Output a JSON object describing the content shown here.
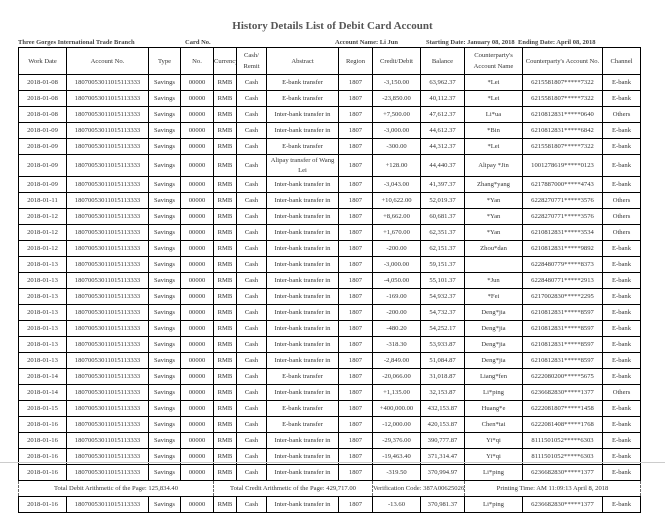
{
  "title": "History Details List of Debit Card Account",
  "info": {
    "branch": "Three Gorges International Trade Branch",
    "card": "Card No.",
    "name": "Account Name: Li Jun",
    "start": "Starting Date: January 08, 2018",
    "end": "Ending Date: April 08, 2018"
  },
  "headers": [
    "Work Date",
    "Account No.",
    "Type",
    "No.",
    "Currency",
    "Cash/ Remit",
    "Abstract",
    "Region",
    "Credit/Debit",
    "Balance",
    "Counterparty's Account Name",
    "Counterparty's Account No.",
    "Channel"
  ],
  "rows": [
    [
      "2018-01-08",
      "18070053011015113333",
      "Savings",
      "00000",
      "RMB",
      "Cash",
      "E-bank transfer",
      "1807",
      "-3,150.00",
      "63,962.37",
      "*Lei",
      "6215581807*****7322",
      "E-bank"
    ],
    [
      "2018-01-08",
      "18070053011015113333",
      "Savings",
      "00000",
      "RMB",
      "Cash",
      "E-bank transfer",
      "1807",
      "-23,850.00",
      "40,112.37",
      "*Lei",
      "6215581807*****7322",
      "E-bank"
    ],
    [
      "2018-01-08",
      "18070053011015113333",
      "Savings",
      "00000",
      "RMB",
      "Cash",
      "Inter-bank transfer in",
      "1807",
      "+7,500.00",
      "47,612.37",
      "Li*ua",
      "6210812831*****0640",
      "Others"
    ],
    [
      "2018-01-09",
      "18070053011015113333",
      "Savings",
      "00000",
      "RMB",
      "Cash",
      "Inter-bank transfer in",
      "1807",
      "-3,000.00",
      "44,612.37",
      "*Bin",
      "6210812831*****6842",
      "E-bank"
    ],
    [
      "2018-01-09",
      "18070053011015113333",
      "Savings",
      "00000",
      "RMB",
      "Cash",
      "E-bank transfer",
      "1807",
      "-300.00",
      "44,312.37",
      "*Lei",
      "6215581807*****7322",
      "E-bank"
    ],
    [
      "2018-01-09",
      "18070053011015113333",
      "Savings",
      "00000",
      "RMB",
      "Cash",
      "Alipay transfer of Wang Lei",
      "1807",
      "+128.00",
      "44,440.37",
      "Alipay *Jin",
      "1001278619*****0123",
      "E-bank"
    ],
    [
      "2018-01-09",
      "18070053011015113333",
      "Savings",
      "00000",
      "RMB",
      "Cash",
      "Inter-bank transfer in",
      "1807",
      "-3,043.00",
      "41,397.37",
      "Zhang*yang",
      "6217887000*****4743",
      "E-bank"
    ],
    [
      "2018-01-11",
      "18070053011015113333",
      "Savings",
      "00000",
      "RMB",
      "Cash",
      "Inter-bank transfer in",
      "1807",
      "+10,622.00",
      "52,019.37",
      "*Yan",
      "6228270771*****3576",
      "Others"
    ],
    [
      "2018-01-12",
      "18070053011015113333",
      "Savings",
      "00000",
      "RMB",
      "Cash",
      "Inter-bank transfer in",
      "1807",
      "+8,662.00",
      "60,681.37",
      "*Yan",
      "6228270771*****3576",
      "Others"
    ],
    [
      "2018-01-12",
      "18070053011015113333",
      "Savings",
      "00000",
      "RMB",
      "Cash",
      "Inter-bank transfer in",
      "1807",
      "+1,670.00",
      "62,351.37",
      "*Yan",
      "6210812831*****3534",
      "Others"
    ],
    [
      "2018-01-12",
      "18070053011015113333",
      "Savings",
      "00000",
      "RMB",
      "Cash",
      "Inter-bank transfer in",
      "1807",
      "-200.00",
      "62,151.37",
      "Zhou*dan",
      "6210812831*****9892",
      "E-bank"
    ],
    [
      "2018-01-13",
      "18070053011015113333",
      "Savings",
      "00000",
      "RMB",
      "Cash",
      "Inter-bank transfer in",
      "1807",
      "-3,000.00",
      "59,151.37",
      "",
      "6228480779*****8373",
      "E-bank"
    ],
    [
      "2018-01-13",
      "18070053011015113333",
      "Savings",
      "00000",
      "RMB",
      "Cash",
      "Inter-bank transfer in",
      "1807",
      "-4,050.00",
      "55,101.37",
      "*Jun",
      "6228480771*****2913",
      "E-bank"
    ],
    [
      "2018-01-13",
      "18070053011015113333",
      "Savings",
      "00000",
      "RMB",
      "Cash",
      "Inter-bank transfer in",
      "1807",
      "-169.00",
      "54,932.37",
      "*Fei",
      "6217002830*****2295",
      "E-bank"
    ],
    [
      "2018-01-13",
      "18070053011015113333",
      "Savings",
      "00000",
      "RMB",
      "Cash",
      "Inter-bank transfer in",
      "1807",
      "-200.00",
      "54,732.37",
      "Deng*jia",
      "6210812831*****8597",
      "E-bank"
    ],
    [
      "2018-01-13",
      "18070053011015113333",
      "Savings",
      "00000",
      "RMB",
      "Cash",
      "Inter-bank transfer in",
      "1807",
      "-480.20",
      "54,252.17",
      "Deng*jia",
      "6210812831*****8597",
      "E-bank"
    ],
    [
      "2018-01-13",
      "18070053011015113333",
      "Savings",
      "00000",
      "RMB",
      "Cash",
      "Inter-bank transfer in",
      "1807",
      "-318.30",
      "53,933.87",
      "Deng*jia",
      "6210812831*****8597",
      "E-bank"
    ],
    [
      "2018-01-13",
      "18070053011015113333",
      "Savings",
      "00000",
      "RMB",
      "Cash",
      "Inter-bank transfer in",
      "1807",
      "-2,849.00",
      "51,084.87",
      "Deng*jia",
      "6210812831*****8597",
      "E-bank"
    ],
    [
      "2018-01-14",
      "18070053011015113333",
      "Savings",
      "00000",
      "RMB",
      "Cash",
      "E-bank transfer",
      "1807",
      "-20,066.00",
      "31,018.87",
      "Liang*fen",
      "6222080200*****5675",
      "E-bank"
    ],
    [
      "2018-01-14",
      "18070053011015113333",
      "Savings",
      "00000",
      "RMB",
      "Cash",
      "Inter-bank transfer in",
      "1807",
      "+1,135.00",
      "32,153.87",
      "Li*ping",
      "6236682830*****1377",
      "Others"
    ],
    [
      "2018-01-15",
      "18070053011015113333",
      "Savings",
      "00000",
      "RMB",
      "Cash",
      "E-bank transfer",
      "1807",
      "+400,000.00",
      "432,153.87",
      "Huang*e",
      "6222081807*****1458",
      "E-bank"
    ],
    [
      "2018-01-16",
      "18070053011015113333",
      "Savings",
      "00000",
      "RMB",
      "Cash",
      "E-bank transfer",
      "1807",
      "-12,000.00",
      "420,153.87",
      "Chen*tai",
      "6222081408*****1768",
      "E-bank"
    ],
    [
      "2018-01-16",
      "18070053011015113333",
      "Savings",
      "00000",
      "RMB",
      "Cash",
      "Inter-bank transfer in",
      "1807",
      "-29,376.00",
      "390,777.87",
      "Yi*qi",
      "8111501052*****6303",
      "E-bank"
    ],
    [
      "2018-01-16",
      "18070053011015113333",
      "Savings",
      "00000",
      "RMB",
      "Cash",
      "Inter-bank transfer in",
      "1807",
      "-19,463.40",
      "371,314.47",
      "Yi*qi",
      "8111501052*****6303",
      "E-bank"
    ],
    [
      "2018-01-16",
      "18070053011015113333",
      "Savings",
      "00000",
      "RMB",
      "Cash",
      "Inter-bank transfer in",
      "1807",
      "-319.50",
      "370,994.97",
      "Li*ping",
      "6236682830*****1377",
      "E-bank"
    ]
  ],
  "totals": {
    "debit": "Total Debit Arithmetic of the Page: 125,834.40",
    "credit": "Total Credit Arithmetic of the Page: 429,717.00",
    "code": "Verification Code: 387A00625026",
    "time": "Printing Time: AM 11:09:13 April 8, 2018"
  },
  "last_row": [
    "2018-01-16",
    "18070053011015113333",
    "Savings",
    "00000",
    "RMB",
    "Cash",
    "Inter-bank transfer in",
    "1807",
    "-13.60",
    "370,981.37",
    "Li*ping",
    "6236682830*****1377",
    "E-bank"
  ]
}
